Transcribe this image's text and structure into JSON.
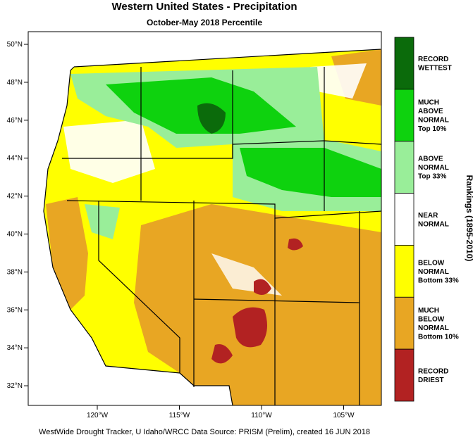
{
  "header": {
    "title": "Western United States - Precipitation",
    "subtitle": "October-May 2018 Percentile"
  },
  "map": {
    "latitude_labels": [
      "50°N",
      "48°N",
      "46°N",
      "44°N",
      "42°N",
      "40°N",
      "38°N",
      "36°N",
      "34°N",
      "32°N"
    ],
    "longitude_labels": [
      "120°W",
      "115°W",
      "110°W",
      "105°W"
    ]
  },
  "legend": {
    "title": "Rankings (1895-2010)",
    "items": [
      {
        "lines": [
          "RECORD",
          "WETTEST"
        ],
        "color": "#0b6b0b"
      },
      {
        "lines": [
          "MUCH",
          "ABOVE",
          "NORMAL",
          "Top 10%"
        ],
        "color": "#0ed20e"
      },
      {
        "lines": [
          "ABOVE",
          "NORMAL",
          "Top 33%"
        ],
        "color": "#99ee99"
      },
      {
        "lines": [
          "NEAR",
          "NORMAL"
        ],
        "color": "#ffffff"
      },
      {
        "lines": [
          "BELOW",
          "NORMAL",
          "Bottom 33%"
        ],
        "color": "#ffff00"
      },
      {
        "lines": [
          "MUCH",
          "BELOW",
          "NORMAL",
          "Bottom 10%"
        ],
        "color": "#e8a623"
      },
      {
        "lines": [
          "RECORD",
          "DRIEST"
        ],
        "color": "#b22222"
      }
    ]
  },
  "footer": "WestWide Drought Tracker, U Idaho/WRCC Data Source: PRISM (Prelim), created 16 JUN 2018"
}
